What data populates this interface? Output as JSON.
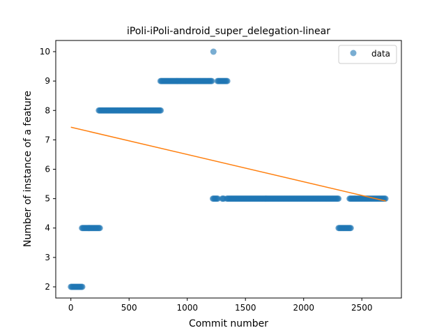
{
  "chart_data": {
    "type": "scatter",
    "title": "iPoli-iPoli-android_super_delegation-linear",
    "xlabel": "Commit number",
    "ylabel": "Number of instance of a feature",
    "xlim": [
      -130,
      2840
    ],
    "ylim": [
      1.62,
      10.38
    ],
    "xticks": [
      0,
      500,
      1000,
      1500,
      2000,
      2500
    ],
    "yticks": [
      2,
      3,
      4,
      5,
      6,
      7,
      8,
      9,
      10
    ],
    "grid": false,
    "legend": {
      "position": "top-right",
      "entries": [
        "data"
      ]
    },
    "series": [
      {
        "name": "data",
        "kind": "points",
        "color": "#1f77b4",
        "segments": [
          {
            "x_start": 0,
            "x_end": 100,
            "y": 2
          },
          {
            "x_start": 95,
            "x_end": 255,
            "y": 4
          },
          {
            "x_start": 240,
            "x_end": 775,
            "y": 8
          },
          {
            "x_start": 770,
            "x_end": 1215,
            "y": 9
          },
          {
            "x_start": 1260,
            "x_end": 1345,
            "y": 9
          },
          {
            "x_start": 1220,
            "x_end": 1265,
            "y": 5
          },
          {
            "x_start": 1300,
            "x_end": 1315,
            "y": 5
          },
          {
            "x_start": 1340,
            "x_end": 2300,
            "y": 5
          },
          {
            "x_start": 2300,
            "x_end": 2410,
            "y": 4
          },
          {
            "x_start": 2395,
            "x_end": 2705,
            "y": 5
          }
        ],
        "points": [
          {
            "x": 1225,
            "y": 10
          }
        ]
      },
      {
        "kind": "line",
        "color": "#ff7f0e",
        "x": [
          0,
          2705
        ],
        "y": [
          7.43,
          4.92
        ]
      }
    ]
  }
}
